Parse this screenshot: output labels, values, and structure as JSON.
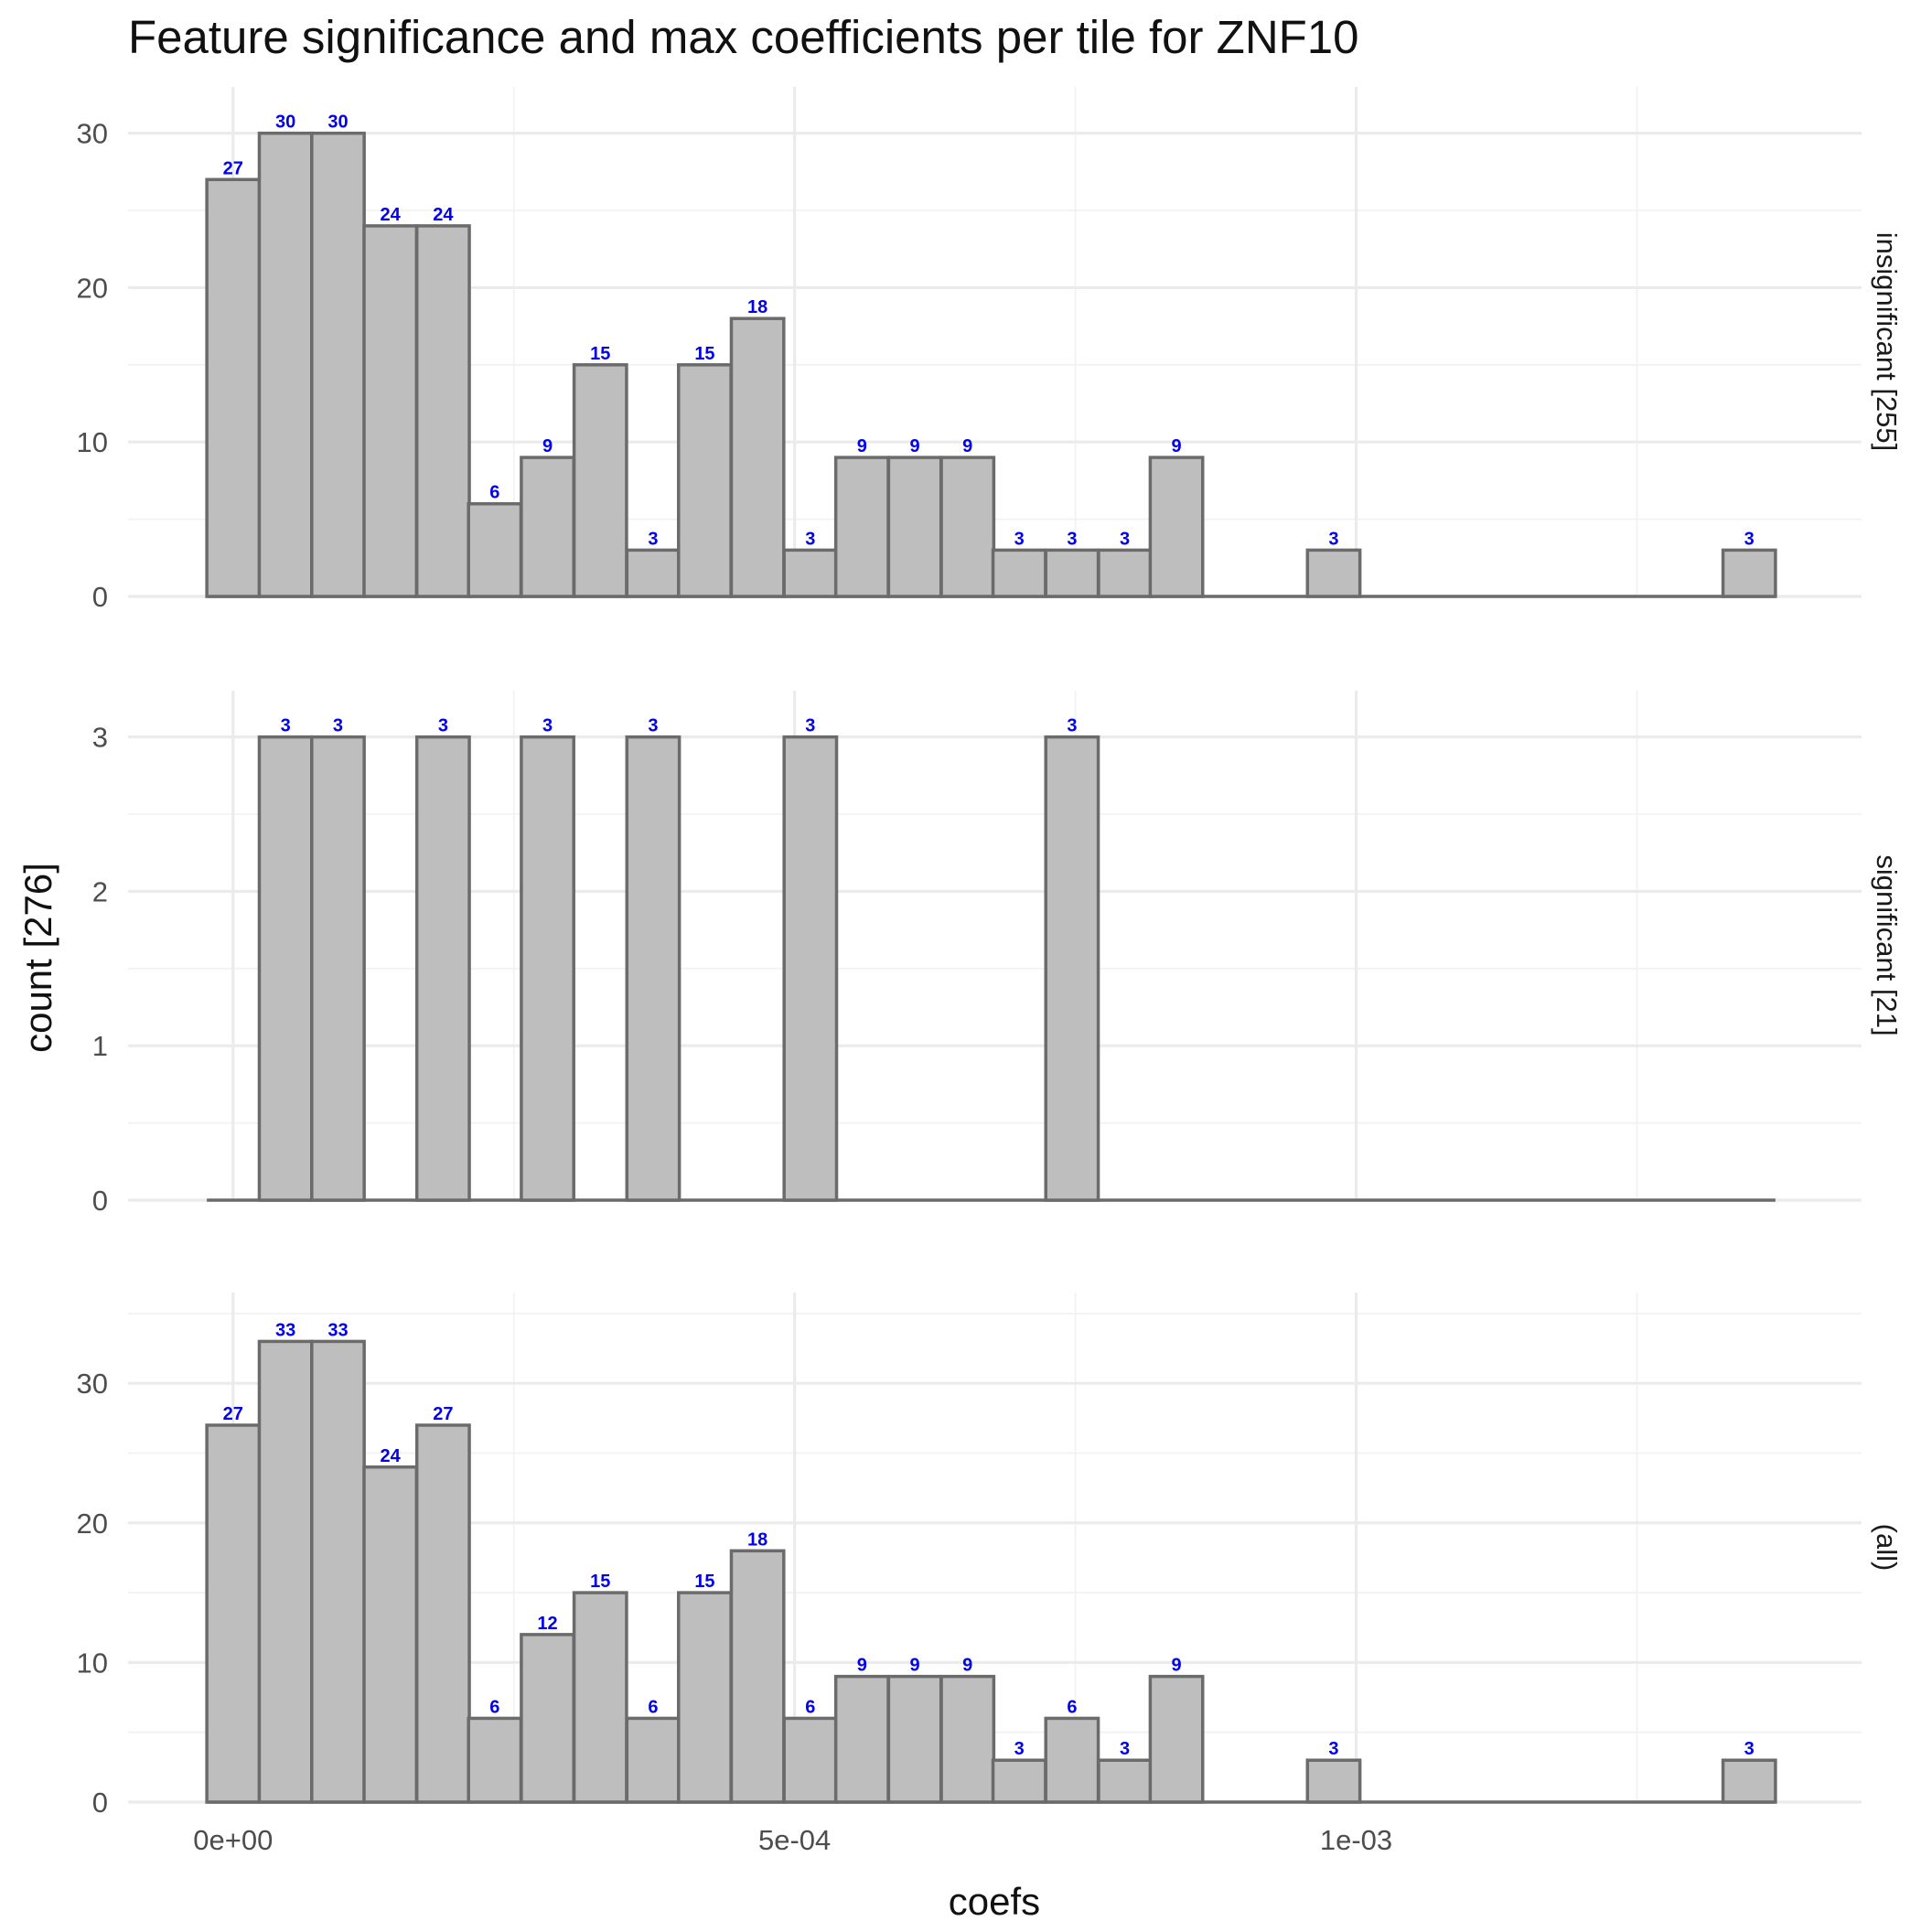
{
  "chart_data": {
    "type": "bar",
    "title": "Feature significance and max coefficients per tile for ZNF10",
    "xlabel": "coefs",
    "ylabel": "count [276]",
    "x_ticks": [
      {
        "value": 0,
        "label": "0e+00"
      },
      {
        "value": 0.0005,
        "label": "5e-04"
      },
      {
        "value": 0.001,
        "label": "1e-03"
      }
    ],
    "xlim": [
      -9.35e-05,
      0.00145
    ],
    "bin_centers": [
      0,
      4.67e-05,
      9.34e-05,
      0.00014,
      0.000187,
      0.000233,
      0.00028,
      0.000327,
      0.000374,
      0.00042,
      0.000467,
      0.000514,
      0.00056,
      0.000607,
      0.000654,
      0.0007,
      0.000747,
      0.000794,
      0.00084,
      0.000887,
      0.000934,
      0.00098,
      0.00103,
      0.00107,
      0.00112,
      0.00117,
      0.00121,
      0.00126,
      0.00131,
      0.00135
    ],
    "bin_width": 4.67e-05,
    "panels": [
      {
        "name": "insignificant [255]",
        "ylim": [
          0,
          33
        ],
        "y_ticks": [
          0,
          10,
          20,
          30
        ],
        "values": [
          27,
          30,
          30,
          24,
          24,
          6,
          9,
          15,
          3,
          15,
          18,
          3,
          9,
          9,
          9,
          3,
          3,
          3,
          9,
          0,
          0,
          3,
          0,
          0,
          0,
          0,
          0,
          0,
          0,
          3
        ]
      },
      {
        "name": "significant [21]",
        "ylim": [
          0,
          3.3
        ],
        "y_ticks": [
          0,
          1,
          2,
          3
        ],
        "values": [
          0,
          3,
          3,
          0,
          3,
          0,
          3,
          0,
          3,
          0,
          0,
          3,
          0,
          0,
          0,
          0,
          3,
          0,
          0,
          0,
          0,
          0,
          0,
          0,
          0,
          0,
          0,
          0,
          0,
          0
        ]
      },
      {
        "name": "(all)",
        "ylim": [
          0,
          36.5
        ],
        "y_ticks": [
          0,
          10,
          20,
          30
        ],
        "values": [
          27,
          33,
          33,
          24,
          27,
          6,
          12,
          15,
          6,
          15,
          18,
          6,
          9,
          9,
          9,
          3,
          6,
          3,
          9,
          0,
          0,
          3,
          0,
          0,
          0,
          0,
          0,
          0,
          0,
          3
        ]
      }
    ],
    "grid": true,
    "legend": "none"
  }
}
